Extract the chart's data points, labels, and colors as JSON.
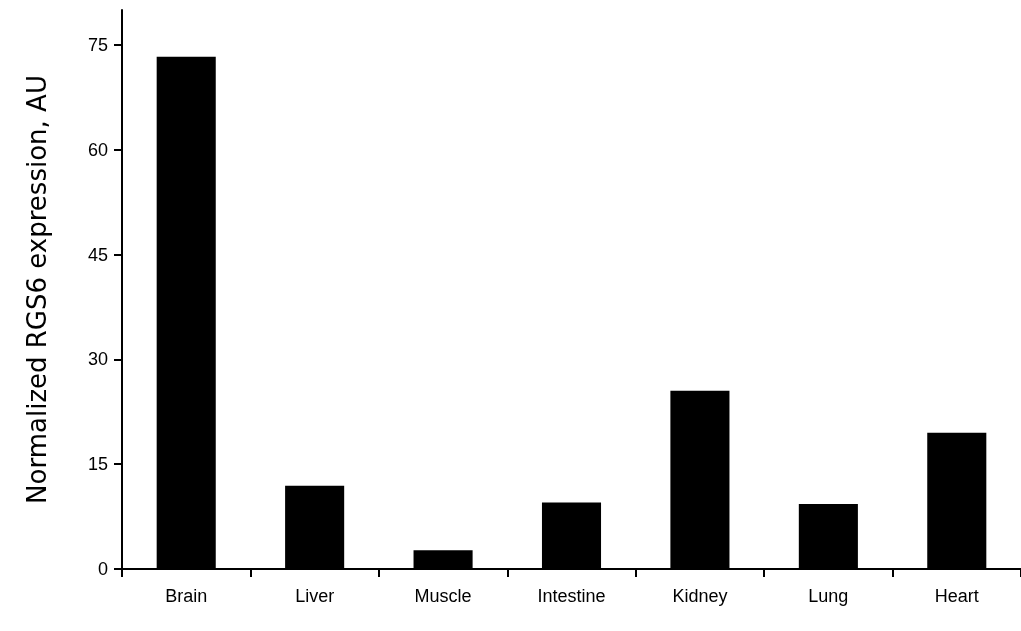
{
  "chart_data": {
    "type": "bar",
    "ylabel": "Normalized RGS6 expression, AU",
    "categories": [
      "Brain",
      "Liver",
      "Muscle",
      "Intestine",
      "Kidney",
      "Lung",
      "Heart"
    ],
    "values": [
      73.3,
      11.9,
      2.7,
      9.5,
      25.5,
      9.3,
      19.5
    ],
    "color": "#000000",
    "ylim": [
      0,
      80
    ],
    "yticks": [
      0,
      15,
      30,
      45,
      60,
      75
    ],
    "grid": false
  }
}
